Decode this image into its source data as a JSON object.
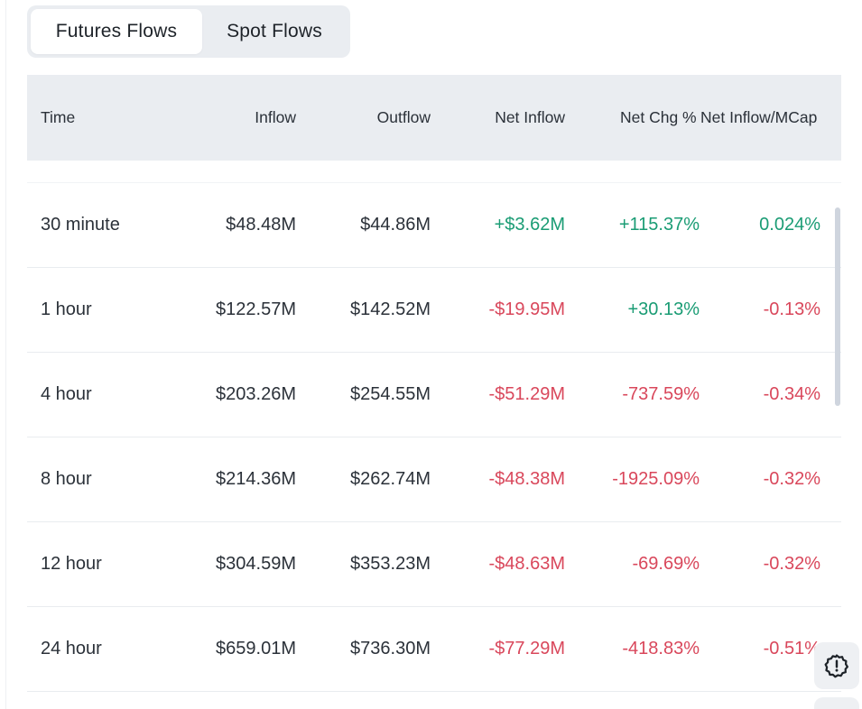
{
  "tabs": [
    {
      "label": "Futures Flows",
      "active": true
    },
    {
      "label": "Spot Flows",
      "active": false
    }
  ],
  "table": {
    "headers": [
      "Time",
      "Inflow",
      "Outflow",
      "Net Inflow",
      "Net Chg %",
      "Net Inflow/MCap"
    ],
    "rows": [
      {
        "time": "30 minute",
        "inflow": "$48.48M",
        "outflow": "$44.86M",
        "net_inflow": "+$3.62M",
        "net_chg": "+115.37%",
        "net_mcap": "0.024%"
      },
      {
        "time": "1 hour",
        "inflow": "$122.57M",
        "outflow": "$142.52M",
        "net_inflow": "-$19.95M",
        "net_chg": "+30.13%",
        "net_mcap": "-0.13%"
      },
      {
        "time": "4 hour",
        "inflow": "$203.26M",
        "outflow": "$254.55M",
        "net_inflow": "-$51.29M",
        "net_chg": "-737.59%",
        "net_mcap": "-0.34%"
      },
      {
        "time": "8 hour",
        "inflow": "$214.36M",
        "outflow": "$262.74M",
        "net_inflow": "-$48.38M",
        "net_chg": "-1925.09%",
        "net_mcap": "-0.32%"
      },
      {
        "time": "12 hour",
        "inflow": "$304.59M",
        "outflow": "$353.23M",
        "net_inflow": "-$48.63M",
        "net_chg": "-69.69%",
        "net_mcap": "-0.32%"
      },
      {
        "time": "24 hour",
        "inflow": "$659.01M",
        "outflow": "$736.30M",
        "net_inflow": "-$77.29M",
        "net_chg": "-418.83%",
        "net_mcap": "-0.51%"
      }
    ]
  },
  "icons": {
    "feedback": "alert-badge-icon"
  },
  "colors": {
    "positive": "#1a9c74",
    "negative": "#d9475b"
  }
}
